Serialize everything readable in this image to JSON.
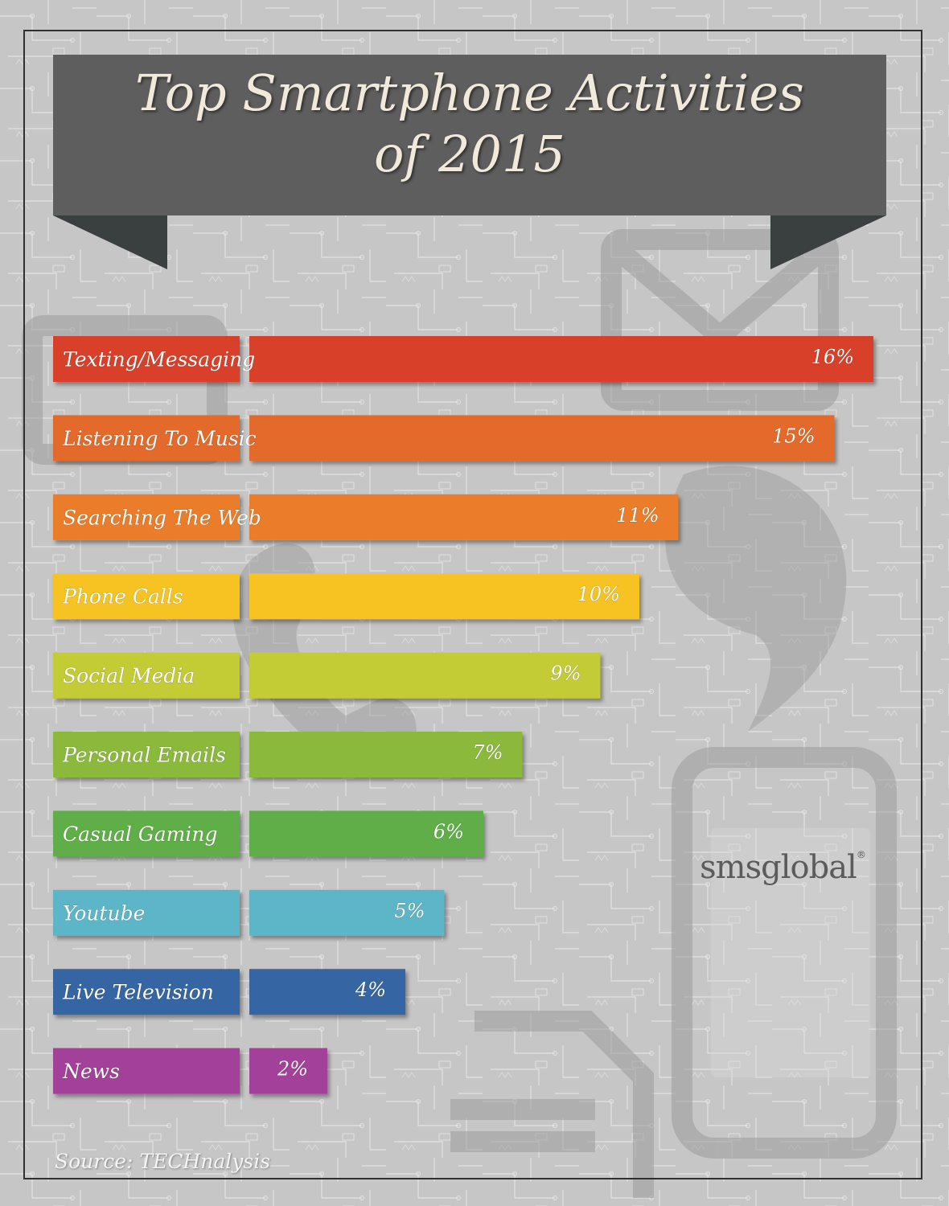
{
  "title": {
    "line1": "Top Smartphone Activities",
    "line2": "of 2015"
  },
  "chart_data": {
    "type": "bar",
    "orientation": "horizontal",
    "title": "Top Smartphone Activities of 2015",
    "categories": [
      "Texting/Messaging",
      "Listening To Music",
      "Searching The Web",
      "Phone Calls",
      "Social Media",
      "Personal Emails",
      "Casual Gaming",
      "Youtube",
      "Live Television",
      "News"
    ],
    "values": [
      16,
      15,
      11,
      10,
      9,
      7,
      6,
      5,
      4,
      2
    ],
    "value_labels": [
      "16%",
      "15%",
      "11%",
      "10%",
      "9%",
      "7%",
      "6%",
      "5%",
      "4%",
      "2%"
    ],
    "colors": [
      "#d83f2b",
      "#e36b2c",
      "#ea7c2c",
      "#f7c324",
      "#c4cc34",
      "#8ab93b",
      "#5fae46",
      "#5cb6c7",
      "#3565a3",
      "#a3409a"
    ],
    "xlim": [
      0,
      16
    ],
    "grid": false,
    "legend": "none"
  },
  "brand": {
    "name": "smsglobal",
    "mark": "®"
  },
  "source": "Source: TECHnalysis"
}
